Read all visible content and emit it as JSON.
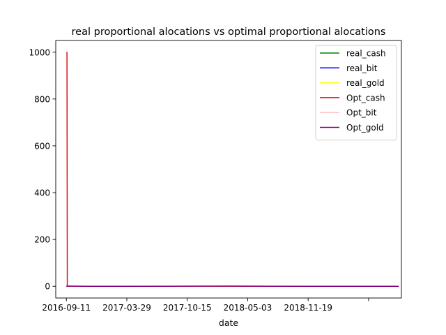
{
  "chart_data": {
    "type": "line",
    "title": "real proportional alocations vs optimal proportional alocations",
    "xlabel": "date",
    "ylabel": "",
    "x_ticks": [
      "2016-09-11",
      "2017-03-29",
      "2017-10-15",
      "2018-05-03",
      "2018-11-19",
      ""
    ],
    "y_ticks": [
      "0",
      "200",
      "400",
      "600",
      "800",
      "1000"
    ],
    "xlim": [
      "2016-08-07",
      "2019-09-19"
    ],
    "ylim": [
      -50,
      1050
    ],
    "grid": false,
    "legend_position": "top-right",
    "series": [
      {
        "name": "real_cash",
        "color": "#008000",
        "points": [
          [
            "2016-09-11",
            0
          ],
          [
            "2016-09-12",
            0
          ],
          [
            "2017-03-29",
            0
          ],
          [
            "2017-10-15",
            0
          ],
          [
            "2018-05-03",
            0
          ],
          [
            "2018-11-19",
            0
          ],
          [
            "2019-09-10",
            0
          ]
        ]
      },
      {
        "name": "real_bit",
        "color": "#0000ff",
        "points": [
          [
            "2016-09-11",
            0
          ],
          [
            "2016-09-12",
            0
          ],
          [
            "2017-03-29",
            0
          ],
          [
            "2017-10-15",
            0
          ],
          [
            "2018-05-03",
            0
          ],
          [
            "2018-11-19",
            0
          ],
          [
            "2019-09-10",
            0
          ]
        ]
      },
      {
        "name": "real_gold",
        "color": "#ffff00",
        "points": [
          [
            "2016-09-11",
            0
          ],
          [
            "2016-09-12",
            0
          ],
          [
            "2017-03-29",
            0
          ],
          [
            "2017-10-15",
            0
          ],
          [
            "2018-05-03",
            0
          ],
          [
            "2018-11-19",
            0
          ],
          [
            "2019-09-10",
            0
          ]
        ]
      },
      {
        "name": "Opt_cash",
        "color": "#dd1111",
        "points": [
          [
            "2016-09-11",
            1000
          ],
          [
            "2016-09-12",
            1000
          ],
          [
            "2016-09-13",
            998
          ],
          [
            "2016-09-14",
            0
          ],
          [
            "2017-03-29",
            0
          ],
          [
            "2017-10-15",
            0
          ],
          [
            "2018-05-03",
            0
          ],
          [
            "2018-11-19",
            0
          ],
          [
            "2019-09-10",
            0
          ]
        ]
      },
      {
        "name": "Opt_bit",
        "color": "#ffc0cb",
        "points": [
          [
            "2016-09-11",
            0
          ],
          [
            "2016-09-14",
            1
          ],
          [
            "2017-03-29",
            0.5
          ],
          [
            "2017-10-15",
            0.5
          ],
          [
            "2018-05-03",
            1
          ],
          [
            "2018-11-19",
            0.5
          ],
          [
            "2019-09-10",
            0.5
          ]
        ]
      },
      {
        "name": "Opt_gold",
        "color": "#800080",
        "points": [
          [
            "2016-09-11",
            0
          ],
          [
            "2016-09-14",
            1
          ],
          [
            "2016-12-01",
            0
          ],
          [
            "2017-03-29",
            0
          ],
          [
            "2017-10-15",
            0.5
          ],
          [
            "2018-03-01",
            1
          ],
          [
            "2018-05-03",
            0.5
          ],
          [
            "2018-11-19",
            0
          ],
          [
            "2019-09-10",
            0
          ]
        ]
      }
    ]
  }
}
